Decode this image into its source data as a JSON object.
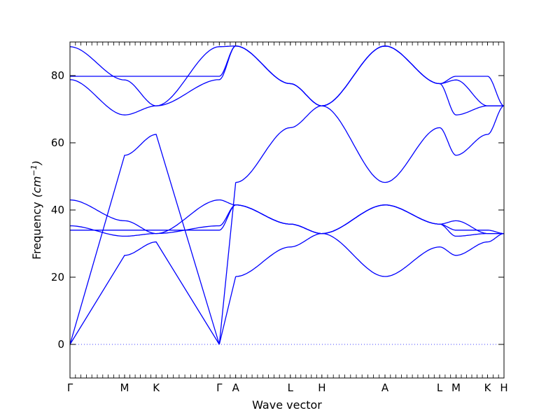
{
  "chart_data": {
    "type": "line",
    "xlabel": "Wave vector",
    "ylabel": "Frequency",
    "ylabel_unit": "(cm",
    "ylabel_unit_exp": "−1",
    "ylabel_unit_close": ")",
    "ylim": [
      -10,
      90
    ],
    "yticks": [
      0,
      20,
      40,
      60,
      80
    ],
    "grid": false,
    "line_color": "#0000ff",
    "zero_line_color": "#4040ff",
    "path": [
      {
        "label": "Γ",
        "x": 0.0
      },
      {
        "label": "M",
        "x": 0.2903
      },
      {
        "label": "K",
        "x": 0.4581
      },
      {
        "label": "Γ",
        "x": 0.7935
      },
      {
        "label": "A",
        "x": 0.8806
      },
      {
        "label": "L",
        "x": 1.171
      },
      {
        "label": "H",
        "x": 1.3387
      },
      {
        "label": "A",
        "x": 1.6742
      },
      {
        "label": "L",
        "x": 1.9645
      },
      {
        "label": "M",
        "x": 2.0516
      },
      {
        "label": "K",
        "x": 2.2194
      },
      {
        "label": "H",
        "x": 2.3065
      }
    ],
    "series": [
      {
        "segments": [
          {
            "x": [
              0.0,
              0.2903,
              0.4581,
              0.7935
            ],
            "y": [
              0,
              26.5,
              30.5,
              0
            ]
          },
          {
            "x": [
              0.7935,
              0.8806
            ],
            "y": [
              0,
              20.2
            ]
          },
          {
            "x": [
              0.8806,
              1.171,
              1.3387
            ],
            "y": [
              20.2,
              29.0,
              33.0
            ]
          },
          {
            "x": [
              1.3387,
              1.6742
            ],
            "y": [
              33.0,
              20.2
            ]
          },
          {
            "x": [
              1.6742,
              1.9645,
              2.0516,
              2.2194,
              2.3065
            ],
            "y": [
              20.2,
              29.0,
              26.5,
              30.5,
              33.0
            ]
          }
        ]
      },
      {
        "segments": [
          {
            "x": [
              0.0,
              0.2903,
              0.4581,
              0.7935
            ],
            "y": [
              0,
              56.3,
              62.5,
              0
            ]
          },
          {
            "x": [
              0.7935,
              0.8806
            ],
            "y": [
              0,
              48.2
            ]
          },
          {
            "x": [
              0.8806,
              1.171,
              1.3387
            ],
            "y": [
              48.2,
              64.5,
              71.0
            ]
          },
          {
            "x": [
              1.3387,
              1.6742
            ],
            "y": [
              71.0,
              48.2
            ]
          },
          {
            "x": [
              1.6742,
              1.9645,
              2.0516,
              2.2194,
              2.3065
            ],
            "y": [
              48.2,
              64.5,
              56.3,
              62.5,
              71.0
            ]
          }
        ]
      },
      {
        "segments": [
          {
            "x": [
              0.0,
              0.2903,
              0.4581,
              0.7935,
              0.8806,
              1.171,
              1.3387
            ],
            "y": [
              34.0,
              34.0,
              34.0,
              34.0,
              41.5,
              35.8,
              33.0
            ]
          },
          {
            "x": [
              1.3387,
              1.6742,
              1.9645,
              2.0516,
              2.2194,
              2.3065
            ],
            "y": [
              33.0,
              41.5,
              35.8,
              34.0,
              34.0,
              33.0
            ]
          }
        ]
      },
      {
        "segments": [
          {
            "x": [
              0.0,
              0.2903,
              0.4581,
              0.7935,
              0.8806,
              1.171,
              1.3387
            ],
            "y": [
              35.3,
              32.2,
              33.0,
              35.3,
              41.5,
              35.8,
              33.0
            ]
          },
          {
            "x": [
              1.3387,
              1.6742,
              1.9645,
              2.0516,
              2.2194,
              2.3065
            ],
            "y": [
              33.0,
              41.5,
              35.8,
              32.2,
              33.0,
              33.0
            ]
          }
        ]
      },
      {
        "segments": [
          {
            "x": [
              0.0,
              0.2903,
              0.4581,
              0.7935,
              0.8806,
              1.171,
              1.3387
            ],
            "y": [
              43.0,
              36.8,
              33.0,
              43.0,
              41.5,
              35.8,
              33.0
            ]
          },
          {
            "x": [
              1.3387,
              1.6742,
              1.9645,
              2.0516,
              2.2194,
              2.3065
            ],
            "y": [
              33.0,
              41.5,
              35.8,
              36.8,
              33.0,
              33.0
            ]
          }
        ]
      },
      {
        "segments": [
          {
            "x": [
              0.0,
              0.2903,
              0.4581,
              0.7935,
              0.8806,
              1.171,
              1.3387
            ],
            "y": [
              78.8,
              68.3,
              71.0,
              78.8,
              88.8,
              77.6,
              71.0
            ]
          },
          {
            "x": [
              1.3387,
              1.6742,
              1.9645,
              2.0516,
              2.2194,
              2.3065
            ],
            "y": [
              71.0,
              88.8,
              77.6,
              68.3,
              71.0,
              71.0
            ]
          }
        ]
      },
      {
        "segments": [
          {
            "x": [
              0.0,
              0.2903,
              0.4581,
              0.7935,
              0.8806,
              1.171,
              1.3387
            ],
            "y": [
              79.8,
              79.8,
              79.8,
              79.8,
              88.8,
              77.6,
              71.0
            ]
          },
          {
            "x": [
              1.3387,
              1.6742,
              1.9645,
              2.0516,
              2.2194,
              2.3065
            ],
            "y": [
              71.0,
              88.8,
              77.6,
              79.8,
              79.8,
              71.0
            ]
          }
        ]
      },
      {
        "segments": [
          {
            "x": [
              0.0,
              0.2903,
              0.4581,
              0.7935,
              0.8806,
              1.171,
              1.3387
            ],
            "y": [
              88.6,
              78.7,
              71.0,
              88.6,
              88.8,
              77.6,
              71.0
            ]
          },
          {
            "x": [
              1.3387,
              1.6742,
              1.9645,
              2.0516,
              2.2194,
              2.3065
            ],
            "y": [
              71.0,
              88.8,
              77.6,
              78.7,
              71.0,
              71.0
            ]
          }
        ]
      }
    ]
  }
}
